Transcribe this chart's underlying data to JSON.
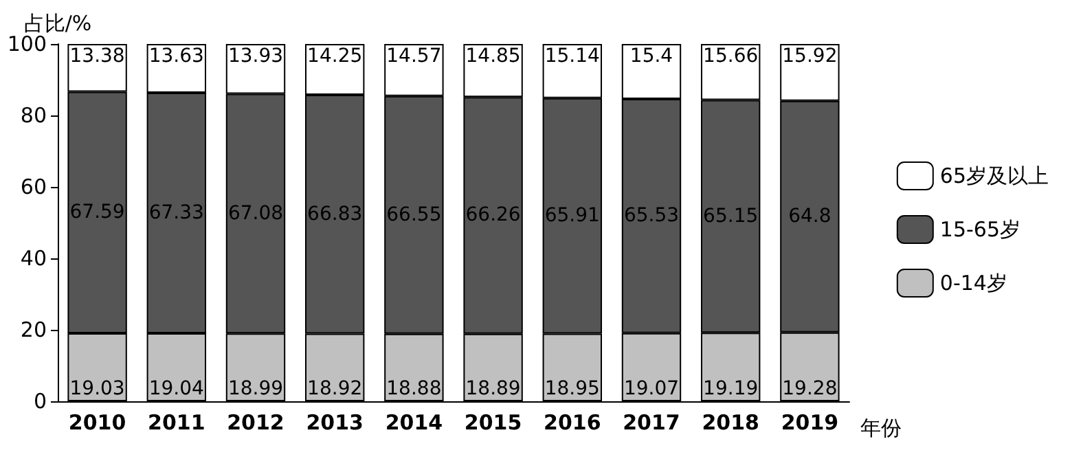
{
  "chart_data": {
    "type": "bar",
    "stacked": true,
    "xlabel": "年份",
    "ylabel": "占比/%",
    "categories": [
      "2010",
      "2011",
      "2012",
      "2013",
      "2014",
      "2015",
      "2016",
      "2017",
      "2018",
      "2019"
    ],
    "series": [
      {
        "name": "0-14岁",
        "color": "#c0c0c0",
        "values": [
          19.03,
          19.04,
          18.99,
          18.92,
          18.88,
          18.89,
          18.95,
          19.07,
          19.19,
          19.28
        ]
      },
      {
        "name": "15-65岁",
        "color": "#555555",
        "values": [
          67.59,
          67.33,
          67.08,
          66.83,
          66.55,
          66.26,
          65.91,
          65.53,
          65.15,
          64.8
        ]
      },
      {
        "name": "65岁及以上",
        "color": "#ffffff",
        "values": [
          13.38,
          13.63,
          13.93,
          14.25,
          14.57,
          14.85,
          15.14,
          15.4,
          15.66,
          15.92
        ]
      }
    ],
    "ylim": [
      0,
      100
    ],
    "yticks": [
      0,
      20,
      40,
      60,
      80,
      100
    ],
    "grid": false,
    "legend": "right",
    "data_labels": true
  }
}
